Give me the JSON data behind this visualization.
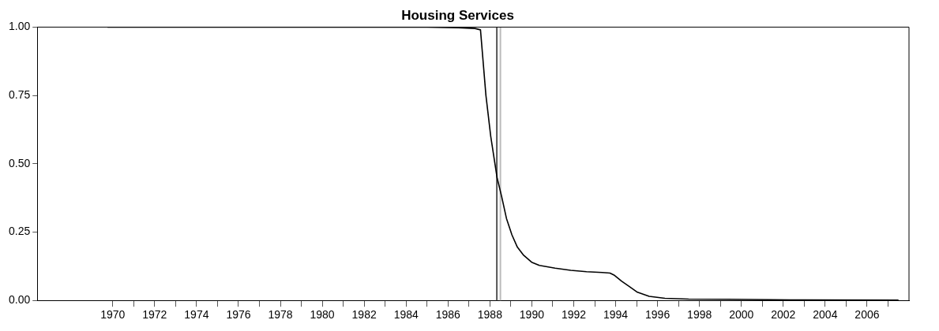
{
  "chart_data": {
    "type": "line",
    "title": "Housing Services",
    "x": [
      1969.75,
      1975,
      1980,
      1985,
      1986.5,
      1987.29,
      1987.55,
      1987.81,
      1988.04,
      1988.34,
      1988.56,
      1988.79,
      1989.05,
      1989.31,
      1989.61,
      1989.99,
      1990.36,
      1991.11,
      1991.86,
      1992.61,
      1993.36,
      1993.73,
      1993.92,
      1994.29,
      1994.67,
      1995.04,
      1995.6,
      1996.35,
      1997.48,
      1999.35,
      2002.34,
      2007.5
    ],
    "series": [
      {
        "color": "#000000",
        "values": [
          1.0,
          1.0,
          1.0,
          1.0,
          0.998,
          0.995,
          0.99,
          0.75,
          0.6,
          0.45,
          0.38,
          0.3,
          0.24,
          0.195,
          0.165,
          0.14,
          0.128,
          0.118,
          0.11,
          0.105,
          0.102,
          0.1,
          0.093,
          0.07,
          0.05,
          0.03,
          0.015,
          0.008,
          0.005,
          0.004,
          0.002,
          0.001
        ]
      }
    ],
    "xlim": [
      1966.4,
      2008
    ],
    "xticks": [
      {
        "value": 1970,
        "label": "1970"
      },
      {
        "value": 1971,
        "label": null
      },
      {
        "value": 1972,
        "label": "1972"
      },
      {
        "value": 1973,
        "label": null
      },
      {
        "value": 1974,
        "label": "1974"
      },
      {
        "value": 1975,
        "label": null
      },
      {
        "value": 1976,
        "label": "1976"
      },
      {
        "value": 1977,
        "label": null
      },
      {
        "value": 1978,
        "label": "1978"
      },
      {
        "value": 1979,
        "label": null
      },
      {
        "value": 1980,
        "label": "1980"
      },
      {
        "value": 1981,
        "label": null
      },
      {
        "value": 1982,
        "label": "1982"
      },
      {
        "value": 1983,
        "label": null
      },
      {
        "value": 1984,
        "label": "1984"
      },
      {
        "value": 1985,
        "label": null
      },
      {
        "value": 1986,
        "label": "1986"
      },
      {
        "value": 1987,
        "label": null
      },
      {
        "value": 1988,
        "label": "1988"
      },
      {
        "value": 1989,
        "label": null
      },
      {
        "value": 1990,
        "label": "1990"
      },
      {
        "value": 1991,
        "label": null
      },
      {
        "value": 1992,
        "label": "1992"
      },
      {
        "value": 1993,
        "label": null
      },
      {
        "value": 1994,
        "label": "1994"
      },
      {
        "value": 1995,
        "label": null
      },
      {
        "value": 1996,
        "label": "1996"
      },
      {
        "value": 1997,
        "label": null
      },
      {
        "value": 1998,
        "label": "1998"
      },
      {
        "value": 1999,
        "label": null
      },
      {
        "value": 2000,
        "label": "2000"
      },
      {
        "value": 2001,
        "label": null
      },
      {
        "value": 2002,
        "label": "2002"
      },
      {
        "value": 2003,
        "label": null
      },
      {
        "value": 2004,
        "label": "2004"
      },
      {
        "value": 2005,
        "label": null
      },
      {
        "value": 2006,
        "label": "2006"
      },
      {
        "value": 2007,
        "label": null
      }
    ],
    "ylim": [
      0,
      1
    ],
    "yticks": [
      {
        "value": 0,
        "label": "0.00"
      },
      {
        "value": 0.25,
        "label": "0.25"
      },
      {
        "value": 0.5,
        "label": "0.50"
      },
      {
        "value": 0.75,
        "label": "0.75"
      },
      {
        "value": 1,
        "label": "1.00"
      }
    ],
    "ref_lines": [
      {
        "axis": "x",
        "value": 1988.33,
        "color": "#555555"
      },
      {
        "axis": "x",
        "value": 1988.5,
        "color": "#bbbbbb"
      }
    ],
    "grid": false,
    "legend": false,
    "marker": "none",
    "line_style": "solid"
  }
}
